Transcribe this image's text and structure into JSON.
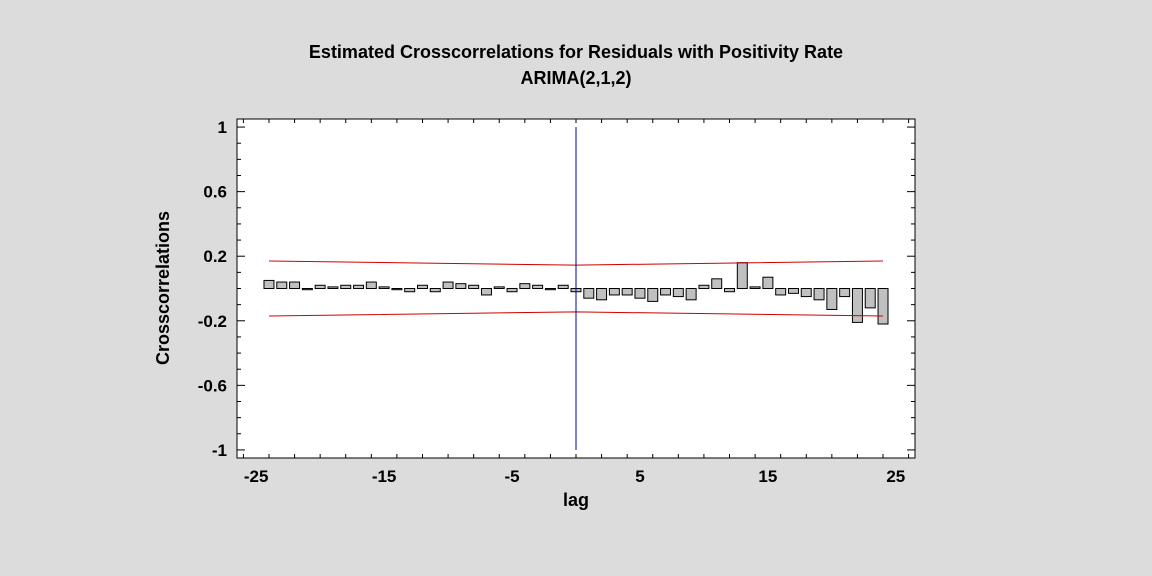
{
  "chart_data": {
    "type": "bar",
    "title": "Estimated Crosscorrelations for Residuals with Positivity Rate",
    "subtitle": "ARIMA(2,1,2)",
    "xlabel": "lag",
    "ylabel": "Crosscorrelations",
    "xlim": [
      -26.5,
      26.5
    ],
    "ylim": [
      -1.05,
      1.05
    ],
    "xticks": [
      -25,
      -15,
      -5,
      5,
      15,
      25
    ],
    "xtick_labels": [
      "-25",
      "-15",
      "-5",
      "5",
      "15",
      "25"
    ],
    "yticks": [
      1,
      0.6,
      0.2,
      -0.2,
      -0.6,
      -1
    ],
    "ytick_labels": [
      "1",
      "0.6",
      "0.2",
      "-0.2",
      "-0.6",
      "-1"
    ],
    "x": [
      -24,
      -23,
      -22,
      -21,
      -20,
      -19,
      -18,
      -17,
      -16,
      -15,
      -14,
      -13,
      -12,
      -11,
      -10,
      -9,
      -8,
      -7,
      -6,
      -5,
      -4,
      -3,
      -2,
      -1,
      0,
      1,
      2,
      3,
      4,
      5,
      6,
      7,
      8,
      9,
      10,
      11,
      12,
      13,
      14,
      15,
      16,
      17,
      18,
      19,
      20,
      21,
      22,
      23,
      24
    ],
    "values": [
      0.05,
      0.04,
      0.04,
      0.0,
      0.02,
      0.01,
      0.02,
      0.02,
      0.04,
      0.01,
      0.0,
      -0.02,
      0.02,
      -0.02,
      0.04,
      0.03,
      0.02,
      -0.04,
      0.01,
      -0.02,
      0.03,
      0.02,
      0.0,
      0.02,
      -0.02,
      -0.06,
      -0.07,
      -0.04,
      -0.04,
      -0.06,
      -0.08,
      -0.04,
      -0.05,
      -0.07,
      0.02,
      0.06,
      -0.02,
      0.16,
      0.01,
      0.07,
      -0.04,
      -0.03,
      -0.05,
      -0.07,
      -0.13,
      -0.05,
      -0.21,
      -0.12,
      -0.22
    ],
    "upper_limit": {
      "x": [
        -24,
        0,
        24
      ],
      "y": [
        0.17,
        0.145,
        0.17
      ]
    },
    "lower_limit": {
      "x": [
        -24,
        0,
        24
      ],
      "y": [
        -0.17,
        -0.145,
        -0.17
      ]
    },
    "reference_line_x": 0,
    "bar_fill": "#c0c0c0",
    "limit_color": "#d00000",
    "reference_color": "#0000a0",
    "grid": false
  }
}
